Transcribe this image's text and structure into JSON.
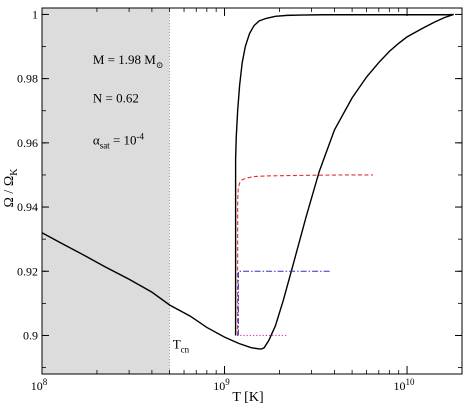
{
  "chart_data": {
    "type": "line",
    "xlabel": "T [K]",
    "ylabel": "Ω / Ω_K",
    "xscale": "log",
    "xlim": [
      100000000.0,
      20000000000.0
    ],
    "ylim": [
      0.888,
      1.002
    ],
    "grid": false,
    "x_ticks": [
      {
        "value": 100000000.0,
        "base": "10",
        "exp": "8"
      },
      {
        "value": 1000000000.0,
        "base": "10",
        "exp": "9"
      },
      {
        "value": 10000000000.0,
        "base": "10",
        "exp": "10"
      }
    ],
    "y_ticks": [
      {
        "value": 0.9,
        "label": "0.9"
      },
      {
        "value": 0.92,
        "label": "0.92"
      },
      {
        "value": 0.94,
        "label": "0.94"
      },
      {
        "value": 0.96,
        "label": "0.96"
      },
      {
        "value": 0.98,
        "label": "0.98"
      },
      {
        "value": 1.0,
        "label": "1"
      }
    ],
    "shaded_region": {
      "x_from": 100000000.0,
      "x_to": 500000000.0,
      "color": "#dcdcdc"
    },
    "annotations": [
      {
        "id": "mass",
        "main": "M = 1.98 M",
        "sub": "⊙",
        "x": 190000000.0,
        "y": 0.9845
      },
      {
        "id": "n",
        "main": "N = 0.62",
        "sub": "",
        "x": 190000000.0,
        "y": 0.9725
      },
      {
        "id": "alpha",
        "main": "α",
        "sub": "sat",
        "tail": " = 10",
        "sup": "-4",
        "x": 190000000.0,
        "y": 0.9595
      },
      {
        "id": "tcn",
        "main": "T",
        "sub": "cn",
        "x": 520000000.0,
        "y": 0.896
      }
    ],
    "series": [
      {
        "id": "main",
        "style": "solid",
        "color": "#000000",
        "x": [
          100000000.0,
          130000000.0,
          170000000.0,
          220000000.0,
          300000000.0,
          400000000.0,
          500000000.0,
          650000000.0,
          800000000.0,
          1000000000.0,
          1200000000.0,
          1400000000.0,
          1550000000.0,
          1600000000.0,
          1650000000.0,
          1750000000.0,
          1900000000.0,
          2100000000.0,
          2400000000.0,
          2800000000.0,
          3300000000.0,
          4000000000.0,
          5000000000.0,
          6000000000.0,
          7000000000.0,
          8000000000.0,
          9000000000.0,
          10000000000.0,
          12000000000.0,
          14000000000.0,
          16000000000.0,
          18000000000.0
        ],
        "y": [
          0.932,
          0.9285,
          0.925,
          0.9215,
          0.9175,
          0.9135,
          0.9095,
          0.906,
          0.9025,
          0.8995,
          0.8975,
          0.8962,
          0.8958,
          0.8958,
          0.8962,
          0.8985,
          0.903,
          0.911,
          0.923,
          0.937,
          0.951,
          0.964,
          0.974,
          0.9805,
          0.985,
          0.9885,
          0.991,
          0.993,
          0.9955,
          0.9975,
          0.999,
          1.0
        ]
      },
      {
        "id": "upper",
        "style": "solid",
        "color": "#000000",
        "x": [
          1150000000.0,
          1150000000.0,
          1150000000.0,
          1160000000.0,
          1180000000.0,
          1210000000.0,
          1250000000.0,
          1300000000.0,
          1370000000.0,
          1450000000.0,
          1550000000.0,
          1700000000.0,
          1900000000.0,
          2200000000.0,
          2600000000.0,
          3500000000.0,
          5000000000.0,
          8000000000.0,
          12000000000.0,
          15000000000.0,
          17000000000.0,
          18000000000.0
        ],
        "y": [
          0.9,
          0.94,
          0.955,
          0.962,
          0.97,
          0.978,
          0.985,
          0.99,
          0.994,
          0.9965,
          0.998,
          0.9988,
          0.9994,
          0.9997,
          0.9998,
          0.9999,
          0.9999,
          0.9999,
          0.9999,
          0.9999,
          0.9999,
          1.0
        ]
      },
      {
        "id": "red",
        "style": "dashed",
        "color": "#e03030",
        "x": [
          1180000000.0,
          1180000000.0,
          1190000000.0,
          1210000000.0,
          1250000000.0,
          1320000000.0,
          1450000000.0,
          1700000000.0,
          2200000000.0,
          3000000000.0,
          4500000000.0,
          6500000000.0
        ],
        "y": [
          0.9,
          0.942,
          0.946,
          0.9475,
          0.9485,
          0.949,
          0.9495,
          0.9497,
          0.9498,
          0.9499,
          0.95,
          0.95
        ]
      },
      {
        "id": "blue",
        "style": "dashdot",
        "color": "#3030c0",
        "x": [
          1190000000.0,
          1190000000.0,
          1190000000.0,
          1500000000.0,
          2000000000.0,
          3000000000.0,
          3800000000.0
        ],
        "y": [
          0.9,
          0.917,
          0.92,
          0.92,
          0.92,
          0.92,
          0.92
        ]
      },
      {
        "id": "magenta",
        "style": "dotted",
        "color": "#d030d0",
        "x": [
          1170000000.0,
          1300000000.0,
          1600000000.0,
          1900000000.0,
          2200000000.0
        ],
        "y": [
          0.9,
          0.9,
          0.9,
          0.9,
          0.9
        ]
      }
    ]
  }
}
